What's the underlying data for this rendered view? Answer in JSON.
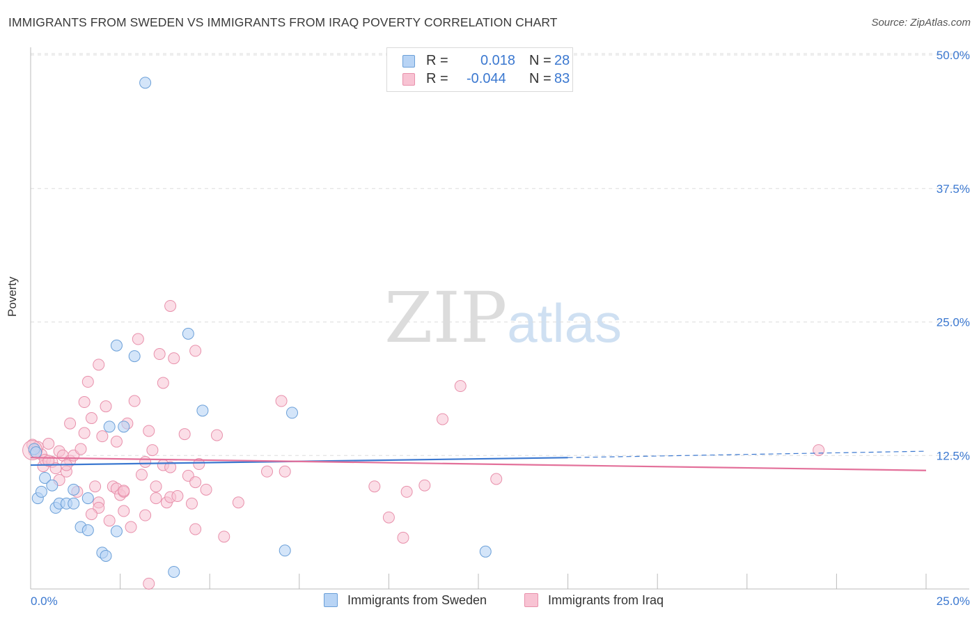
{
  "title": "IMMIGRANTS FROM SWEDEN VS IMMIGRANTS FROM IRAQ POVERTY CORRELATION CHART",
  "source": "Source: ZipAtlas.com",
  "watermark": {
    "zip": "ZIP",
    "atlas": "atlas"
  },
  "legend_top": {
    "rows": [
      {
        "r_label": "R =",
        "r_value": "0.018",
        "n_label": "N =",
        "n_value": "28"
      },
      {
        "r_label": "R =",
        "r_value": "-0.044",
        "n_label": "N =",
        "n_value": "83"
      }
    ]
  },
  "colors": {
    "sweden_fill": "#b8d4f5",
    "sweden_stroke": "#6a9fd8",
    "sweden_line": "#3b78d0",
    "iraq_fill": "#f8c3d3",
    "iraq_stroke": "#e890ab",
    "iraq_line": "#e3709a",
    "grid": "#dddddd",
    "tick_label": "#3b78d0"
  },
  "chart_data": {
    "type": "scatter",
    "title": "IMMIGRANTS FROM SWEDEN VS IMMIGRANTS FROM IRAQ POVERTY CORRELATION CHART",
    "xlabel": "",
    "ylabel": "Poverty",
    "xlim": [
      0,
      25
    ],
    "ylim": [
      0,
      50
    ],
    "x_tick_labels": [
      "0.0%",
      "25.0%"
    ],
    "y_ticks": [
      12.5,
      25.0,
      37.5,
      50.0
    ],
    "y_tick_labels": [
      "12.5%",
      "25.0%",
      "37.5%",
      "50.0%"
    ],
    "grid": true,
    "legend_position": "bottom",
    "series": [
      {
        "name": "Immigrants from Sweden",
        "r": 0.018,
        "n": 28,
        "trend": {
          "x0": 0,
          "y0": 11.6,
          "x1": 15,
          "y1": 12.3,
          "dashed_to_x": 25,
          "dashed_to_y": 12.9
        },
        "points": [
          [
            0.1,
            13.1
          ],
          [
            0.2,
            8.5
          ],
          [
            0.3,
            9.1
          ],
          [
            0.4,
            10.4
          ],
          [
            0.6,
            9.7
          ],
          [
            0.7,
            7.6
          ],
          [
            0.8,
            8.0
          ],
          [
            1.0,
            8.0
          ],
          [
            1.2,
            8.0
          ],
          [
            1.2,
            9.3
          ],
          [
            1.4,
            5.8
          ],
          [
            1.6,
            8.5
          ],
          [
            1.6,
            5.5
          ],
          [
            2.0,
            3.4
          ],
          [
            2.1,
            3.1
          ],
          [
            2.2,
            15.2
          ],
          [
            2.4,
            5.4
          ],
          [
            2.4,
            22.8
          ],
          [
            2.6,
            15.2
          ],
          [
            2.9,
            21.8
          ],
          [
            3.2,
            47.4
          ],
          [
            4.0,
            1.6
          ],
          [
            4.4,
            23.9
          ],
          [
            4.8,
            16.7
          ],
          [
            7.1,
            3.6
          ],
          [
            7.3,
            16.5
          ],
          [
            12.7,
            3.5
          ],
          [
            0.15,
            12.8
          ]
        ]
      },
      {
        "name": "Immigrants from Iraq",
        "r": -0.044,
        "n": 83,
        "trend": {
          "x0": 0,
          "y0": 12.3,
          "x1": 25,
          "y1": 11.1
        },
        "points": [
          [
            0.05,
            13.5
          ],
          [
            0.1,
            12.9
          ],
          [
            0.2,
            13.3
          ],
          [
            0.3,
            12.6
          ],
          [
            0.35,
            11.5
          ],
          [
            0.4,
            12.1
          ],
          [
            0.5,
            13.6
          ],
          [
            0.6,
            11.9
          ],
          [
            0.7,
            11.3
          ],
          [
            0.8,
            12.9
          ],
          [
            0.9,
            12.5
          ],
          [
            1.0,
            11.0
          ],
          [
            1.1,
            12.0
          ],
          [
            1.1,
            15.5
          ],
          [
            1.2,
            12.5
          ],
          [
            1.3,
            9.1
          ],
          [
            1.4,
            13.1
          ],
          [
            1.5,
            14.6
          ],
          [
            1.5,
            17.5
          ],
          [
            1.6,
            19.4
          ],
          [
            1.7,
            16.0
          ],
          [
            1.8,
            9.6
          ],
          [
            1.9,
            8.1
          ],
          [
            1.9,
            7.6
          ],
          [
            1.9,
            21.0
          ],
          [
            2.0,
            14.3
          ],
          [
            2.1,
            17.1
          ],
          [
            2.2,
            6.4
          ],
          [
            2.3,
            9.6
          ],
          [
            2.4,
            9.4
          ],
          [
            2.4,
            13.8
          ],
          [
            2.5,
            8.8
          ],
          [
            2.6,
            9.1
          ],
          [
            2.6,
            7.3
          ],
          [
            2.7,
            15.5
          ],
          [
            2.8,
            5.8
          ],
          [
            2.9,
            17.6
          ],
          [
            3.0,
            23.4
          ],
          [
            3.1,
            10.7
          ],
          [
            3.2,
            6.9
          ],
          [
            3.2,
            11.9
          ],
          [
            3.3,
            0.5
          ],
          [
            3.3,
            14.8
          ],
          [
            3.4,
            13.0
          ],
          [
            3.5,
            8.5
          ],
          [
            3.5,
            9.6
          ],
          [
            3.6,
            22.0
          ],
          [
            3.7,
            11.6
          ],
          [
            3.7,
            19.3
          ],
          [
            3.8,
            8.1
          ],
          [
            3.9,
            11.4
          ],
          [
            3.9,
            8.6
          ],
          [
            3.9,
            26.5
          ],
          [
            4.0,
            21.6
          ],
          [
            4.1,
            8.7
          ],
          [
            4.3,
            14.5
          ],
          [
            4.4,
            10.6
          ],
          [
            4.5,
            8.0
          ],
          [
            4.6,
            10.0
          ],
          [
            4.6,
            5.6
          ],
          [
            4.6,
            22.3
          ],
          [
            4.7,
            11.7
          ],
          [
            4.9,
            9.3
          ],
          [
            5.2,
            14.4
          ],
          [
            5.4,
            4.9
          ],
          [
            5.8,
            8.1
          ],
          [
            6.6,
            11.0
          ],
          [
            7.0,
            17.6
          ],
          [
            7.1,
            11.0
          ],
          [
            9.6,
            9.6
          ],
          [
            10.0,
            6.7
          ],
          [
            10.4,
            4.8
          ],
          [
            10.5,
            9.1
          ],
          [
            11.0,
            9.7
          ],
          [
            11.5,
            15.9
          ],
          [
            12.0,
            19.0
          ],
          [
            13.0,
            10.3
          ],
          [
            22.0,
            13.0
          ],
          [
            0.5,
            12.0
          ],
          [
            1.0,
            11.6
          ],
          [
            0.8,
            10.2
          ],
          [
            2.6,
            9.2
          ],
          [
            1.7,
            7.0
          ]
        ]
      }
    ]
  },
  "bottom_legend": [
    {
      "label": "Immigrants from Sweden"
    },
    {
      "label": "Immigrants from Iraq"
    }
  ]
}
